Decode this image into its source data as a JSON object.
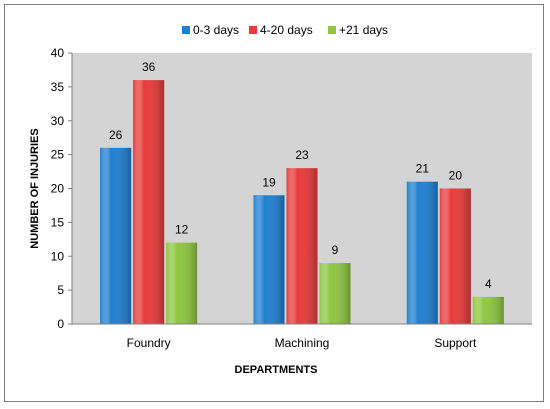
{
  "chart_data": {
    "type": "bar",
    "title": "",
    "xlabel": "DEPARTMENTS",
    "ylabel": "NUMBER OF INJURIES",
    "categories": [
      "Foundry",
      "Machining",
      "Support"
    ],
    "series": [
      {
        "name": "0-3 days",
        "color": "#1f7fd0",
        "values": [
          26,
          19,
          21
        ]
      },
      {
        "name": "4-20 days",
        "color": "#e83a3a",
        "values": [
          36,
          23,
          20
        ]
      },
      {
        "name": "+21 days",
        "color": "#8ec63f",
        "values": [
          12,
          9,
          4
        ]
      }
    ],
    "ylim": [
      0,
      40
    ],
    "yticks": [
      "0",
      "5",
      "10",
      "15",
      "20",
      "25",
      "30",
      "35",
      "40"
    ],
    "grid": false,
    "legend_position": "top",
    "plot_background": "#d4d4d4"
  }
}
